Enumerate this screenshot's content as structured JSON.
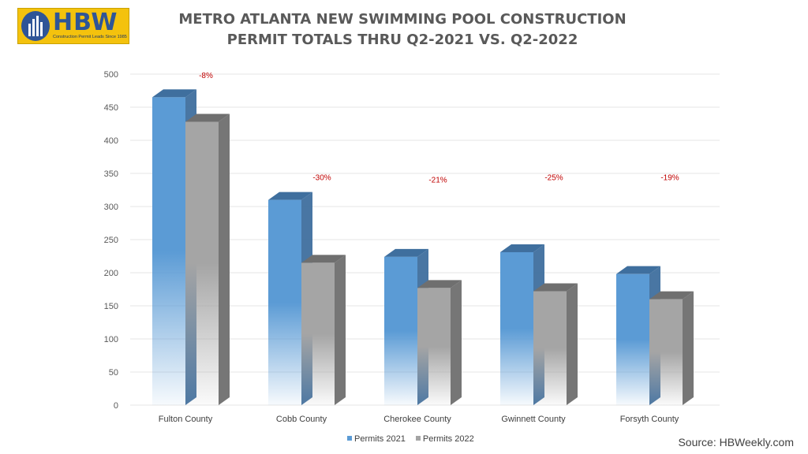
{
  "logo": {
    "name": "HBW",
    "tagline": "Construction Permit Leads Since 1985"
  },
  "title_lines": [
    "METRO ATLANTA NEW SWIMMING POOL CONSTRUCTION",
    "PERMIT TOTALS THRU Q2-2021 VS. Q2-2022"
  ],
  "source": "Source: HBWeekly.com",
  "colors": {
    "series_2021": "#5b9bd5",
    "series_2021_side": "#3f6f9e",
    "series_2022": "#a5a5a5",
    "series_2022_side": "#6f6f6f",
    "grid": "#e6e6e6",
    "change_label": "#c00000"
  },
  "chart_data": {
    "type": "bar",
    "title": "METRO ATLANTA NEW SWIMMING POOL CONSTRUCTION PERMIT TOTALS THRU Q2-2021 VS. Q2-2022",
    "categories": [
      "Fulton County",
      "Cobb County",
      "Cherokee County",
      "Gwinnett County",
      "Forsyth County"
    ],
    "series": [
      {
        "name": "Permits 2021",
        "values": [
          465,
          310,
          224,
          231,
          198
        ]
      },
      {
        "name": "Permits 2022",
        "values": [
          428,
          215,
          177,
          172,
          160
        ]
      }
    ],
    "changes": [
      "-8%",
      "-30%",
      "-21%",
      "-25%",
      "-19%"
    ],
    "yticks": [
      "0",
      "50",
      "100",
      "150",
      "200",
      "250",
      "300",
      "350",
      "400",
      "450",
      "500"
    ],
    "ylim": [
      0,
      500
    ],
    "grid": true,
    "legend": "bottom-center",
    "xlabel": "",
    "ylabel": ""
  }
}
